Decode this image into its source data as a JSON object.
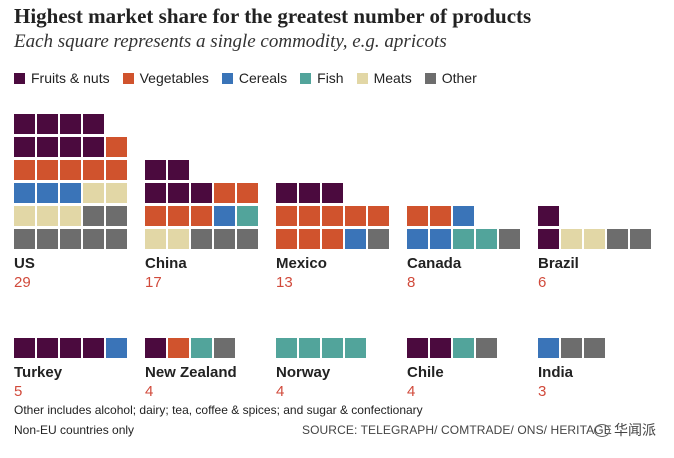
{
  "header": {
    "title": "Highest market share for the greatest number of products",
    "subtitle": "Each square represents a single commodity, e.g. apricots"
  },
  "colors": {
    "fruits_nuts": "#4b0a3e",
    "vegetables": "#d0532d",
    "cereals": "#3a74b8",
    "fish": "#52a49b",
    "meats": "#e2d7a6",
    "other": "#6d6d6d"
  },
  "footer": {
    "note": "Other includes alcohol; dairy; tea, coffee & spices; and sugar & confectionary",
    "note2": "Non-EU countries only",
    "source": "SOURCE: TELEGRAPH/ COMTRADE/ ONS/ HERITAGE",
    "watermark": "华闻派"
  },
  "chart_data": {
    "type": "waffle",
    "title": "Highest market share for the greatest number of products",
    "subtitle": "Each square represents a single commodity, e.g. apricots",
    "legend": [
      {
        "key": "fruits_nuts",
        "label": "Fruits & nuts"
      },
      {
        "key": "vegetables",
        "label": "Vegetables"
      },
      {
        "key": "cereals",
        "label": "Cereals"
      },
      {
        "key": "fish",
        "label": "Fish"
      },
      {
        "key": "meats",
        "label": "Meats"
      },
      {
        "key": "other",
        "label": "Other"
      }
    ],
    "countries": [
      {
        "name": "US",
        "total": "29",
        "rows": [
          [
            "other",
            "other",
            "other",
            "other",
            "other"
          ],
          [
            "meats",
            "meats",
            "meats",
            "other",
            "other"
          ],
          [
            "cereals",
            "cereals",
            "cereals",
            "meats",
            "meats"
          ],
          [
            "vegetables",
            "vegetables",
            "vegetables",
            "vegetables",
            "vegetables"
          ],
          [
            "fruits_nuts",
            "fruits_nuts",
            "fruits_nuts",
            "fruits_nuts",
            "vegetables"
          ],
          [
            "fruits_nuts",
            "fruits_nuts",
            "fruits_nuts",
            "fruits_nuts"
          ]
        ]
      },
      {
        "name": "China",
        "total": "17",
        "rows": [
          [
            "meats",
            "meats",
            "other",
            "other",
            "other"
          ],
          [
            "vegetables",
            "vegetables",
            "vegetables",
            "cereals",
            "fish"
          ],
          [
            "fruits_nuts",
            "fruits_nuts",
            "fruits_nuts",
            "vegetables",
            "vegetables"
          ],
          [
            "fruits_nuts",
            "fruits_nuts"
          ]
        ]
      },
      {
        "name": "Mexico",
        "total": "13",
        "rows": [
          [
            "vegetables",
            "vegetables",
            "vegetables",
            "cereals",
            "other"
          ],
          [
            "vegetables",
            "vegetables",
            "vegetables",
            "vegetables",
            "vegetables"
          ],
          [
            "fruits_nuts",
            "fruits_nuts",
            "fruits_nuts"
          ]
        ]
      },
      {
        "name": "Canada",
        "total": "8",
        "rows": [
          [
            "cereals",
            "cereals",
            "fish",
            "fish",
            "other"
          ],
          [
            "vegetables",
            "vegetables",
            "cereals"
          ]
        ]
      },
      {
        "name": "Brazil",
        "total": "6",
        "rows": [
          [
            "fruits_nuts",
            "meats",
            "meats",
            "other",
            "other"
          ],
          [
            "fruits_nuts"
          ]
        ]
      },
      {
        "name": "Turkey",
        "total": "5",
        "rows": [
          [
            "fruits_nuts",
            "fruits_nuts",
            "fruits_nuts",
            "fruits_nuts",
            "cereals"
          ]
        ]
      },
      {
        "name": "New Zealand",
        "total": "4",
        "rows": [
          [
            "fruits_nuts",
            "vegetables",
            "fish",
            "other"
          ]
        ]
      },
      {
        "name": "Norway",
        "total": "4",
        "rows": [
          [
            "fish",
            "fish",
            "fish",
            "fish"
          ]
        ]
      },
      {
        "name": "Chile",
        "total": "4",
        "rows": [
          [
            "fruits_nuts",
            "fruits_nuts",
            "fish",
            "other"
          ]
        ]
      },
      {
        "name": "India",
        "total": "3",
        "rows": [
          [
            "cereals",
            "other",
            "other"
          ]
        ]
      }
    ]
  }
}
